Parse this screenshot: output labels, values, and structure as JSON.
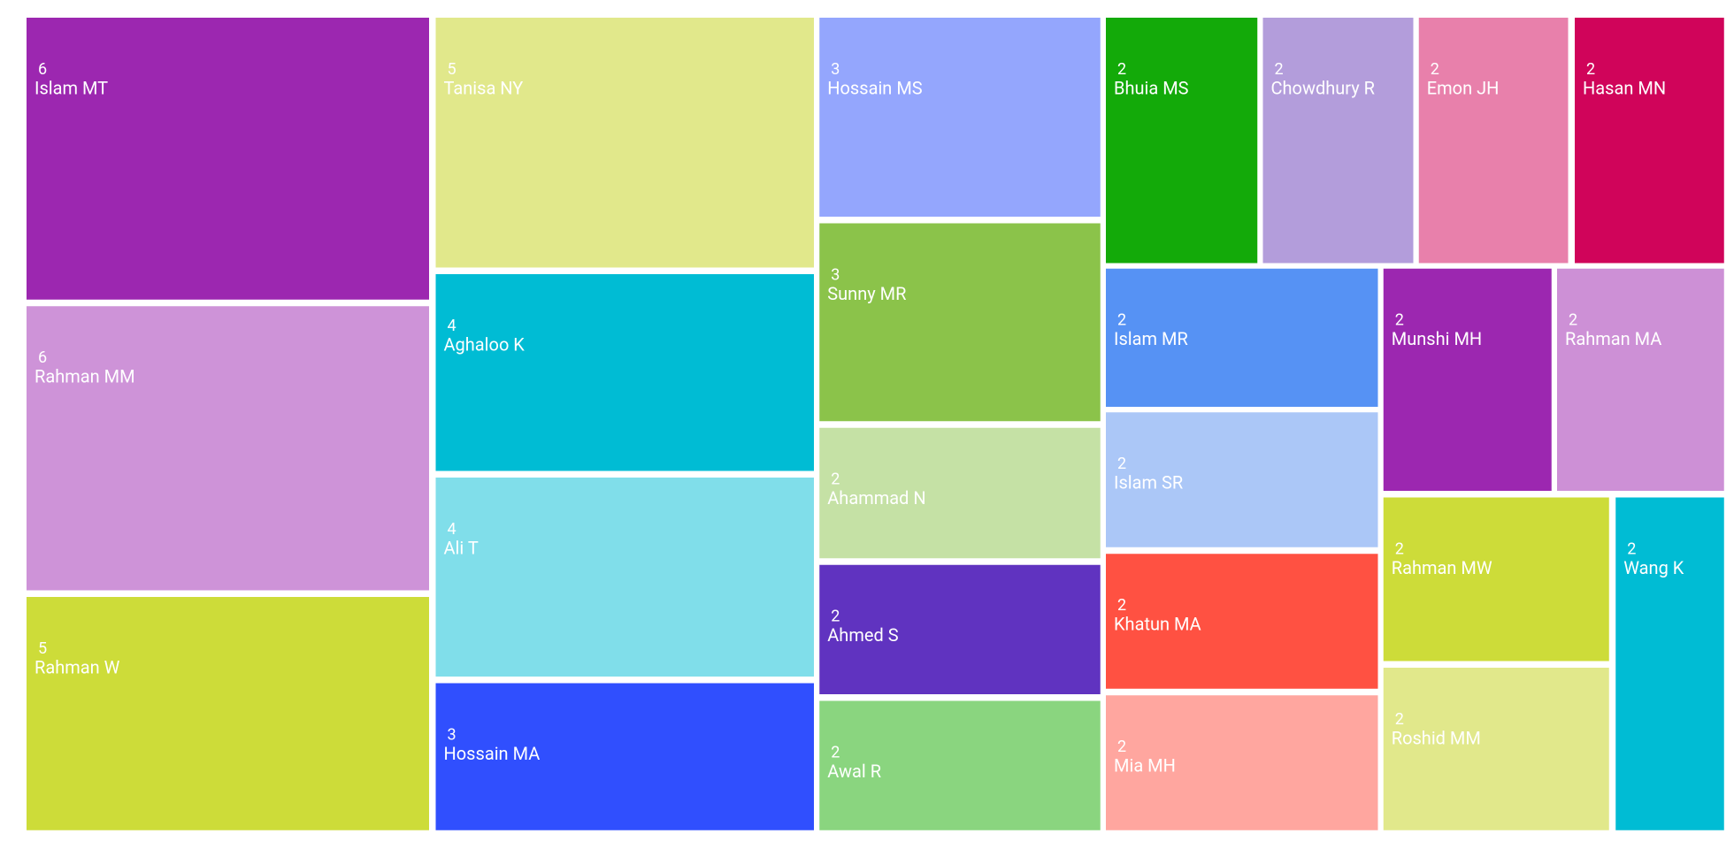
{
  "chart_data": {
    "type": "treemap",
    "categories": [
      "Islam MT",
      "Rahman MM",
      "Rahman W",
      "Tanisa NY",
      "Aghaloo K",
      "Ali T",
      "Hossain MA",
      "Hossain MS",
      "Sunny MR",
      "Ahammad N",
      "Ahmed S",
      "Awal R",
      "Bhuia MS",
      "Chowdhury R",
      "Emon JH",
      "Hasan MN",
      "Islam MR",
      "Islam SR",
      "Khatun MA",
      "Mia MH",
      "Munshi MH",
      "Rahman MA",
      "Rahman MW",
      "Roshid MM",
      "Wang K"
    ],
    "values": [
      6,
      6,
      5,
      5,
      4,
      4,
      3,
      3,
      3,
      2,
      2,
      2,
      2,
      2,
      2,
      2,
      2,
      2,
      2,
      2,
      2,
      2,
      2,
      2,
      2
    ],
    "colors": [
      "#9c27b0",
      "#ce93d8",
      "#cddc39",
      "#e1e88b",
      "#00bcd4",
      "#80deea",
      "#304ffe",
      "#94a6fd",
      "#8bc34a",
      "#c5e1a5",
      "#6033c0",
      "#8ad57f",
      "#13aa09",
      "#b39ddb",
      "#e880ab",
      "#d0045a",
      "#5692f4",
      "#abc7f7",
      "#ff5142",
      "#ffa69f",
      "#9c27b0",
      "#cd90d6",
      "#cddc39",
      "#e1e88b",
      "#00bcd4"
    ]
  }
}
